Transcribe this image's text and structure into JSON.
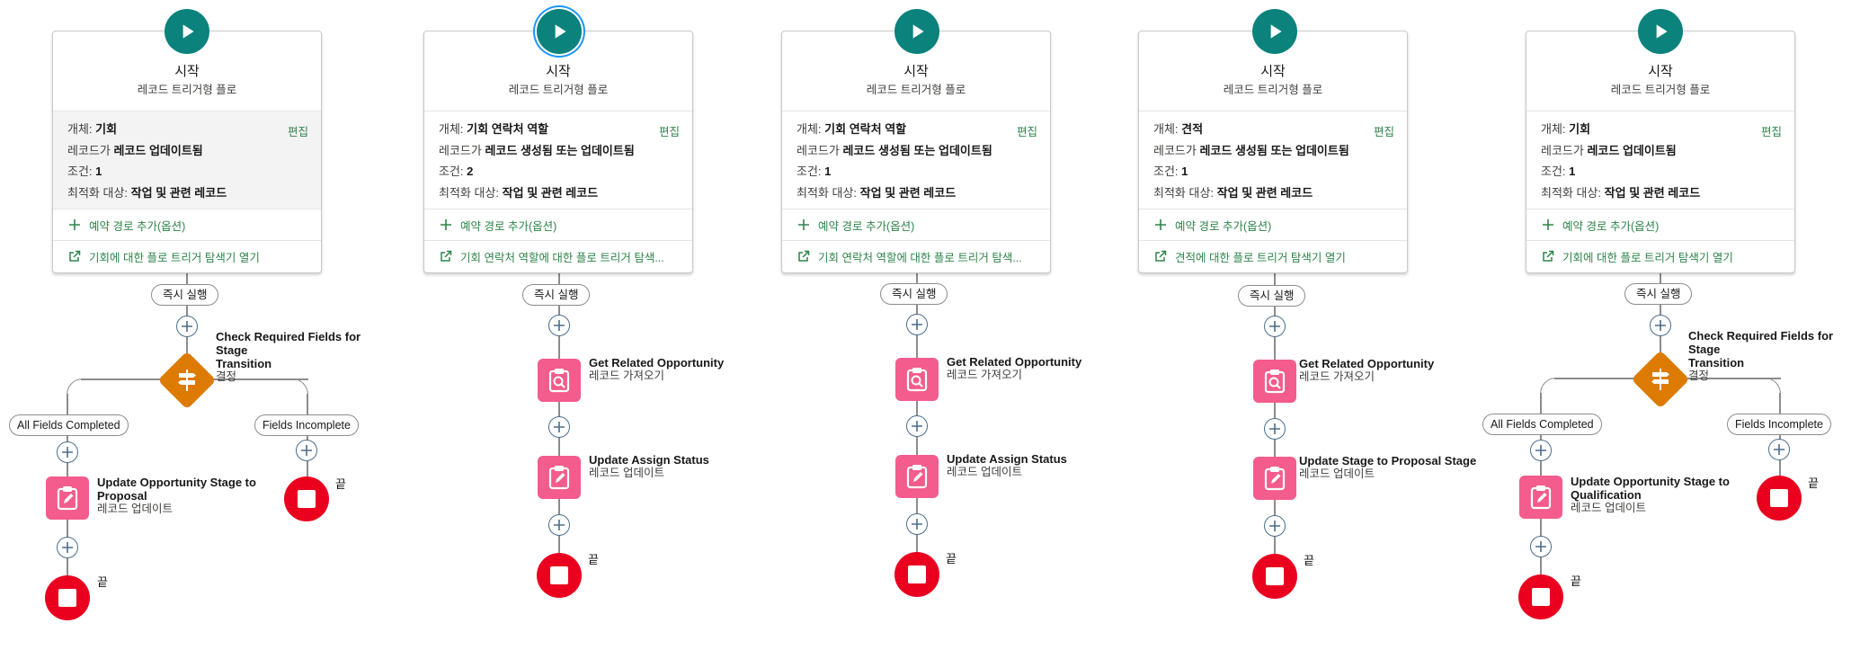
{
  "flows": [
    {
      "start": {
        "title": "시작",
        "subtitle": "레코드 트리거형 플로"
      },
      "criteria": {
        "object_key": "개체:",
        "object_value": "기회",
        "trigger_key": "레코드가",
        "trigger_value": "레코드 업데이트됨",
        "condition_key": "조건:",
        "condition_value": "1",
        "optimize_key": "최적화 대상:",
        "optimize_value": "작업 및 관련 레코드",
        "edit": "편집"
      },
      "add_path": "예약 경로 추가(옵션)",
      "explorer_link": "기회에 대한 플로 트리거 탐색기 열기",
      "run_label": "즉시 실행",
      "decision": {
        "title_line1": "Check Required Fields for Stage",
        "title_line2": "Transition",
        "type": "결정"
      },
      "outcomes": {
        "left": "All Fields Completed",
        "right": "Fields Incomplete"
      },
      "update": {
        "title_line1": "Update Opportunity Stage to",
        "title_line2": "Proposal",
        "type": "레코드 업데이트"
      },
      "end_label": "끝"
    },
    {
      "start": {
        "title": "시작",
        "subtitle": "레코드 트리거형 플로"
      },
      "criteria": {
        "object_key": "개체:",
        "object_value": "기회 연락처 역할",
        "trigger_key": "레코드가",
        "trigger_value": "레코드 생성됨 또는 업데이트됨",
        "condition_key": "조건:",
        "condition_value": "2",
        "optimize_key": "최적화 대상:",
        "optimize_value": "작업 및 관련 레코드",
        "edit": "편집"
      },
      "add_path": "예약 경로 추가(옵션)",
      "explorer_link": "기회 연락처 역할에 대한 플로 트리거 탐색...",
      "run_label": "즉시 실행",
      "get": {
        "title": "Get Related Opportunity",
        "type": "레코드 가져오기"
      },
      "update": {
        "title": "Update Assign Status",
        "type": "레코드 업데이트"
      },
      "end_label": "끝"
    },
    {
      "start": {
        "title": "시작",
        "subtitle": "레코드 트리거형 플로"
      },
      "criteria": {
        "object_key": "개체:",
        "object_value": "기회 연락처 역할",
        "trigger_key": "레코드가",
        "trigger_value": "레코드 생성됨 또는 업데이트됨",
        "condition_key": "조건:",
        "condition_value": "1",
        "optimize_key": "최적화 대상:",
        "optimize_value": "작업 및 관련 레코드",
        "edit": "편집"
      },
      "add_path": "예약 경로 추가(옵션)",
      "explorer_link": "기회 연락처 역할에 대한 플로 트리거 탐색...",
      "run_label": "즉시 실행",
      "get": {
        "title": "Get Related Opportunity",
        "type": "레코드 가져오기"
      },
      "update": {
        "title": "Update Assign Status",
        "type": "레코드 업데이트"
      },
      "end_label": "끝"
    },
    {
      "start": {
        "title": "시작",
        "subtitle": "레코드 트리거형 플로"
      },
      "criteria": {
        "object_key": "개체:",
        "object_value": "견적",
        "trigger_key": "레코드가",
        "trigger_value": "레코드 생성됨 또는 업데이트됨",
        "condition_key": "조건:",
        "condition_value": "1",
        "optimize_key": "최적화 대상:",
        "optimize_value": "작업 및 관련 레코드",
        "edit": "편집"
      },
      "add_path": "예약 경로 추가(옵션)",
      "explorer_link": "견적에 대한 플로 트리거 탐색기 열기",
      "run_label": "즉시 실행",
      "get": {
        "title": "Get Related Opportunity",
        "type": "레코드 가져오기"
      },
      "update": {
        "title": "Update Stage to Proposal Stage",
        "type": "레코드 업데이트"
      },
      "end_label": "끝"
    },
    {
      "start": {
        "title": "시작",
        "subtitle": "레코드 트리거형 플로"
      },
      "criteria": {
        "object_key": "개체:",
        "object_value": "기회",
        "trigger_key": "레코드가",
        "trigger_value": "레코드 업데이트됨",
        "condition_key": "조건:",
        "condition_value": "1",
        "optimize_key": "최적화 대상:",
        "optimize_value": "작업 및 관련 레코드",
        "edit": "편집"
      },
      "add_path": "예약 경로 추가(옵션)",
      "explorer_link": "기회에 대한 플로 트리거 탐색기 열기",
      "run_label": "즉시 실행",
      "decision": {
        "title_line1": "Check Required Fields for Stage",
        "title_line2": "Transition",
        "type": "결정"
      },
      "outcomes": {
        "left": "All Fields Completed",
        "right": "Fields Incomplete"
      },
      "update": {
        "title_line1": "Update Opportunity Stage to",
        "title_line2": "Qualification",
        "type": "레코드 업데이트"
      },
      "end_label": "끝"
    }
  ],
  "colors": {
    "start": "#0b827c",
    "decision": "#dd7a01",
    "record_element": "#f35c8c",
    "end": "#ea001e",
    "link_green": "#2e844a",
    "add_button_border": "#4a6d8c"
  },
  "icons": {
    "start": "play-icon",
    "add": "plus-icon",
    "decision": "signpost-icon",
    "get_records": "clipboard-search-icon",
    "update_records": "clipboard-pencil-icon",
    "end": "stop-icon",
    "explorer": "external-link-icon"
  }
}
